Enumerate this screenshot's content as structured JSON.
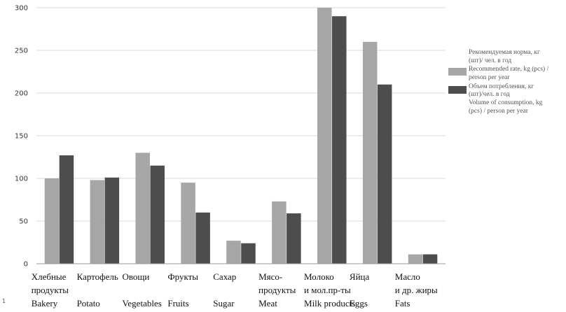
{
  "chart_data": {
    "type": "bar",
    "title": "",
    "xlabel": "",
    "ylabel": "",
    "ylim": [
      0,
      300
    ],
    "yticks": [
      0,
      50,
      100,
      150,
      200,
      250,
      300
    ],
    "grid": true,
    "legend_position": "right",
    "categories": [
      "Хлебные\nпродукты\nBakery",
      "Картофель\n\nPotato",
      "Овощи\n\nVegetables",
      "Фрукты\n\nFruits",
      "Сахар\n\nSugar",
      "Мясо-\nпродукты\nMeat",
      "Молоко\nи мол.пр-ты\nMilk products",
      "Яйца\n\nEggs",
      "Масло\nи др. жиры\nFats"
    ],
    "series": [
      {
        "name": "Рекомендуемая норма, кг\n(шт)/ чел. в год\nRecommended rate, kg (pcs) /\nperson per year",
        "color": "#a6a6a6",
        "values": [
          100,
          98,
          130,
          95,
          27,
          73,
          300,
          260,
          11
        ]
      },
      {
        "name": "Объем потребления, кг\n(шт)/чел. в год\nVolume of consumption, kg\n(pcs) / person per year",
        "color": "#4d4d4d",
        "values": [
          127,
          101,
          115,
          60,
          24,
          59,
          290,
          210,
          11
        ]
      }
    ]
  },
  "stub_glyph": "1"
}
